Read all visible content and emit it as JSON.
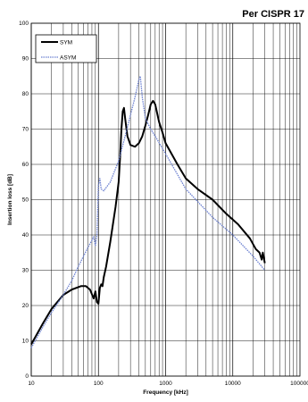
{
  "chart_data": {
    "type": "line",
    "title": "Per CISPR 17",
    "xlabel": "Frequency [kHz]",
    "ylabel": "Insertion loss [dB]",
    "xscale": "log",
    "xlim": [
      10,
      100000
    ],
    "ylim": [
      0,
      100
    ],
    "x_ticks": [
      10,
      100,
      1000,
      10000,
      100000
    ],
    "x_tick_labels": [
      "10",
      "100",
      "1000",
      "10000",
      "100000"
    ],
    "y_ticks": [
      0,
      10,
      20,
      30,
      40,
      50,
      60,
      70,
      80,
      90,
      100
    ],
    "grid": true,
    "legend_position": "top-left",
    "series": [
      {
        "name": "SYM",
        "color": "#000000",
        "style": "solid",
        "points": [
          [
            10,
            9
          ],
          [
            15,
            15
          ],
          [
            20,
            19
          ],
          [
            30,
            23
          ],
          [
            40,
            24.5
          ],
          [
            55,
            25.5
          ],
          [
            65,
            25.5
          ],
          [
            75,
            24.5
          ],
          [
            85,
            22
          ],
          [
            90,
            24
          ],
          [
            95,
            21
          ],
          [
            100,
            20.5
          ],
          [
            105,
            25
          ],
          [
            110,
            26
          ],
          [
            115,
            25.5
          ],
          [
            120,
            28
          ],
          [
            130,
            31
          ],
          [
            150,
            38
          ],
          [
            180,
            48
          ],
          [
            200,
            55
          ],
          [
            210,
            62
          ],
          [
            220,
            70
          ],
          [
            230,
            75
          ],
          [
            240,
            76
          ],
          [
            250,
            73
          ],
          [
            270,
            68
          ],
          [
            300,
            65.5
          ],
          [
            350,
            65
          ],
          [
            400,
            66
          ],
          [
            450,
            68
          ],
          [
            500,
            71
          ],
          [
            550,
            74
          ],
          [
            600,
            77
          ],
          [
            650,
            78
          ],
          [
            700,
            77
          ],
          [
            800,
            72
          ],
          [
            900,
            69
          ],
          [
            1000,
            66
          ],
          [
            1500,
            60
          ],
          [
            2000,
            56
          ],
          [
            3000,
            53
          ],
          [
            5000,
            50
          ],
          [
            8000,
            46
          ],
          [
            12000,
            43
          ],
          [
            18000,
            39
          ],
          [
            22000,
            36
          ],
          [
            25000,
            35
          ],
          [
            27000,
            33
          ],
          [
            28000,
            35
          ],
          [
            30000,
            32
          ]
        ]
      },
      {
        "name": "ASYM",
        "color": "#6a7fd0",
        "style": "dashed",
        "points": [
          [
            10,
            8
          ],
          [
            15,
            14
          ],
          [
            20,
            18
          ],
          [
            30,
            23
          ],
          [
            40,
            27
          ],
          [
            50,
            31
          ],
          [
            60,
            34
          ],
          [
            70,
            36.5
          ],
          [
            80,
            38.5
          ],
          [
            85,
            39.5
          ],
          [
            90,
            37
          ],
          [
            95,
            40
          ],
          [
            100,
            54
          ],
          [
            105,
            56
          ],
          [
            110,
            53
          ],
          [
            120,
            52.5
          ],
          [
            150,
            55
          ],
          [
            200,
            61
          ],
          [
            250,
            68
          ],
          [
            300,
            74
          ],
          [
            350,
            79
          ],
          [
            400,
            84
          ],
          [
            420,
            85
          ],
          [
            450,
            79
          ],
          [
            500,
            73
          ],
          [
            600,
            70
          ],
          [
            700,
            68
          ],
          [
            1000,
            63
          ],
          [
            2000,
            53
          ],
          [
            5000,
            45
          ],
          [
            10000,
            40
          ],
          [
            20000,
            34
          ],
          [
            30000,
            30
          ]
        ]
      }
    ]
  }
}
